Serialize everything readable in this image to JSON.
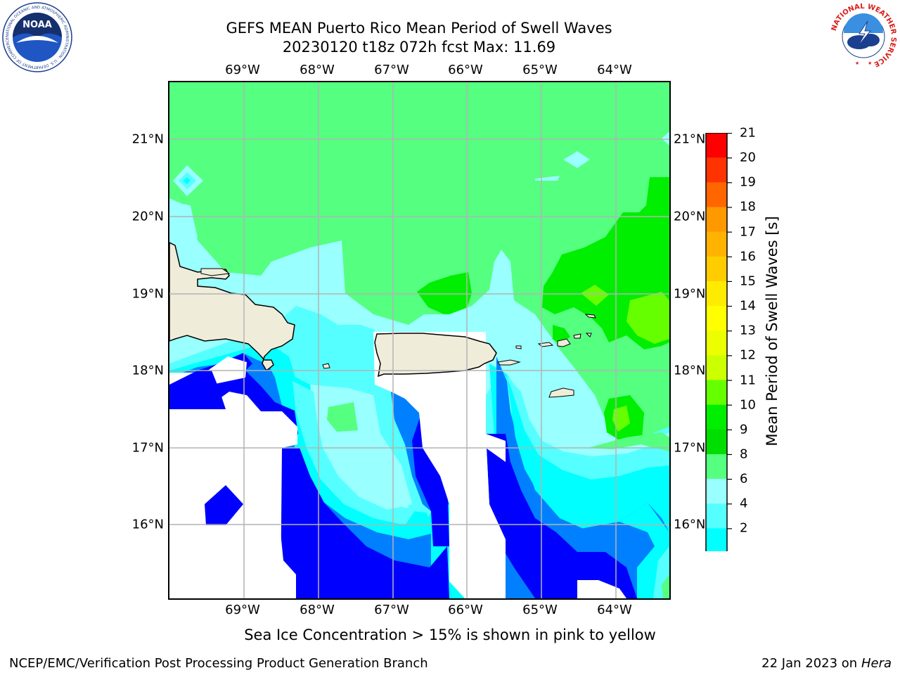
{
  "title": {
    "line1": "GEFS MEAN Puerto Rico Mean Period of Swell Waves",
    "line2": "20230120 t18z 072h fcst   Max: 11.69"
  },
  "map": {
    "lon_labels": [
      "69°W",
      "68°W",
      "67°W",
      "66°W",
      "65°W",
      "64°W"
    ],
    "lat_labels": [
      "21°N",
      "20°N",
      "19°N",
      "18°N",
      "17°N",
      "16°N"
    ],
    "land_color": "#efedda",
    "grid_color": "#b4b4b4"
  },
  "colorbar": {
    "label": "Mean Period of Swell Waves [s]",
    "ticks": [
      "21",
      "20",
      "19",
      "18",
      "17",
      "16",
      "15",
      "14",
      "13",
      "12",
      "11",
      "10",
      "9",
      "8",
      "6",
      "4",
      "2"
    ],
    "colors": [
      "#ff0000",
      "#ff3300",
      "#ff6600",
      "#ff9900",
      "#ffb300",
      "#ffcc00",
      "#ffeb00",
      "#ffff00",
      "#ebff00",
      "#ccff00",
      "#66ff00",
      "#00ee00",
      "#00dd00",
      "#55ff80",
      "#99ffff",
      "#55ffff",
      "#00ffff",
      "#0080ff",
      "#0000ff"
    ]
  },
  "footnote": "Sea Ice Concentration > 15% is shown in pink to yellow",
  "credit": "NCEP/EMC/Verification Post Processing Product Generation Branch",
  "date": {
    "text": "22 Jan 2023 on",
    "machine": "Hera"
  },
  "logos": {
    "noaa": "NOAA",
    "noaa_ring": "NATIONAL OCEANIC AND ATMOSPHERIC ADMINISTRATION · U.S. DEPARTMENT OF COMMERCE",
    "nws_ring": "NATIONAL WEATHER SERVICE"
  }
}
